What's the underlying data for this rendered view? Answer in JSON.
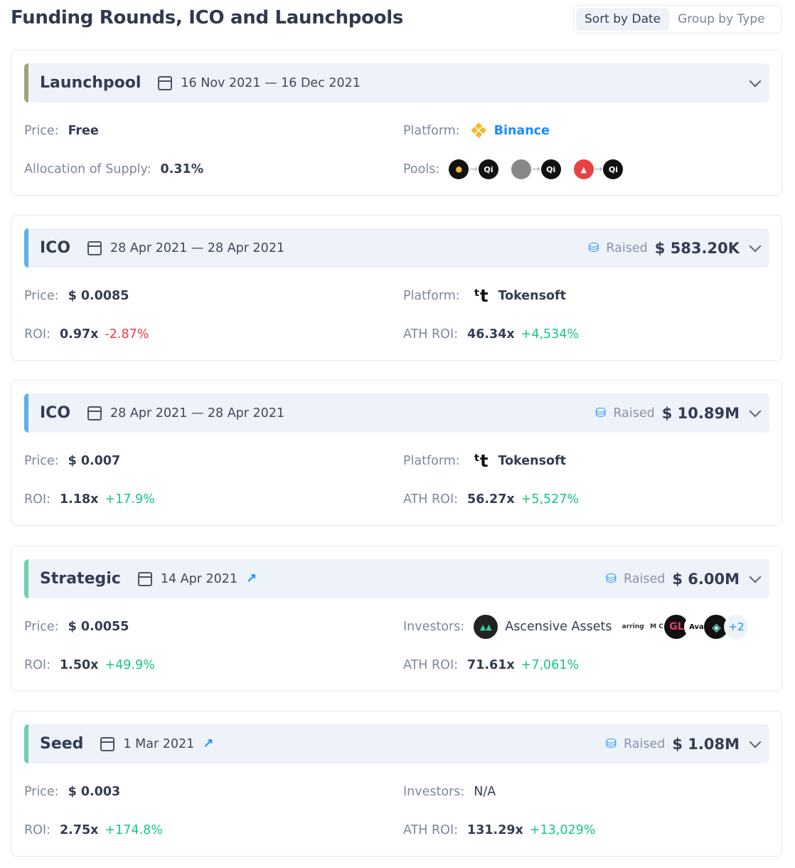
{
  "page_title": "Funding Rounds, ICO and Launchpools",
  "view_toggle": {
    "options": [
      "Sort by Date",
      "Group by Type"
    ],
    "active": "Sort by Date"
  },
  "rounds": [
    {
      "type": "Launchpool",
      "accent": "#9aa57a",
      "date": "16 Nov 2021 — 16 Dec 2021",
      "price_label": "Price:",
      "price": "Free",
      "left2_label": "Allocation of Supply:",
      "left2_value": "0.31%",
      "right1_label": "Platform:",
      "platform": "Binance",
      "platform_icon": "binance-icon",
      "right2_label": "Pools:",
      "pools": [
        [
          "bnb-icon",
          "qi-icon"
        ],
        [
          "gray-token-icon",
          "qi-icon"
        ],
        [
          "avax-icon",
          "qi-icon"
        ]
      ]
    },
    {
      "type": "ICO",
      "accent": "#5bb0e8",
      "date": "28 Apr 2021 — 28 Apr 2021",
      "raised_label": "Raised",
      "raised": "$ 583.20K",
      "price_label": "Price:",
      "price": "$ 0.0085",
      "left2_label": "ROI:",
      "roi": "0.97x",
      "roi_pct": "-2.87%",
      "right1_label": "Platform:",
      "platform": "Tokensoft",
      "platform_icon": "tokensoft-icon",
      "right2_label": "ATH ROI:",
      "ath_roi": "46.34x",
      "ath_pct": "+4,534%"
    },
    {
      "type": "ICO",
      "accent": "#5bb0e8",
      "date": "28 Apr 2021 — 28 Apr 2021",
      "raised_label": "Raised",
      "raised": "$ 10.89M",
      "price_label": "Price:",
      "price": "$ 0.007",
      "left2_label": "ROI:",
      "roi": "1.18x",
      "roi_pct": "+17.9%",
      "right1_label": "Platform:",
      "platform": "Tokensoft",
      "platform_icon": "tokensoft-icon",
      "right2_label": "ATH ROI:",
      "ath_roi": "56.27x",
      "ath_pct": "+5,527%"
    },
    {
      "type": "Strategic",
      "accent": "#6fcfb0",
      "date": "14 Apr 2021",
      "external_link": true,
      "raised_label": "Raised",
      "raised": "$ 6.00M",
      "price_label": "Price:",
      "price": "$ 0.0055",
      "left2_label": "ROI:",
      "roi": "1.50x",
      "roi_pct": "+49.9%",
      "right1_label": "Investors:",
      "investor": "Ascensive Assets",
      "investor_logos": [
        "arrington-capital-logo",
        "mc-logo",
        "gl-logo",
        "ava-labs-logo",
        "diamond-logo"
      ],
      "more_investors": "+2",
      "right2_label": "ATH ROI:",
      "ath_roi": "71.61x",
      "ath_pct": "+7,061%"
    },
    {
      "type": "Seed",
      "accent": "#6fcfb0",
      "date": "1 Mar 2021",
      "external_link": true,
      "raised_label": "Raised",
      "raised": "$ 1.08M",
      "price_label": "Price:",
      "price": "$ 0.003",
      "left2_label": "ROI:",
      "roi": "2.75x",
      "roi_pct": "+174.8%",
      "right1_label": "Investors:",
      "investor": "N/A",
      "right2_label": "ATH ROI:",
      "ath_roi": "131.29x",
      "ath_pct": "+13,029%"
    }
  ]
}
